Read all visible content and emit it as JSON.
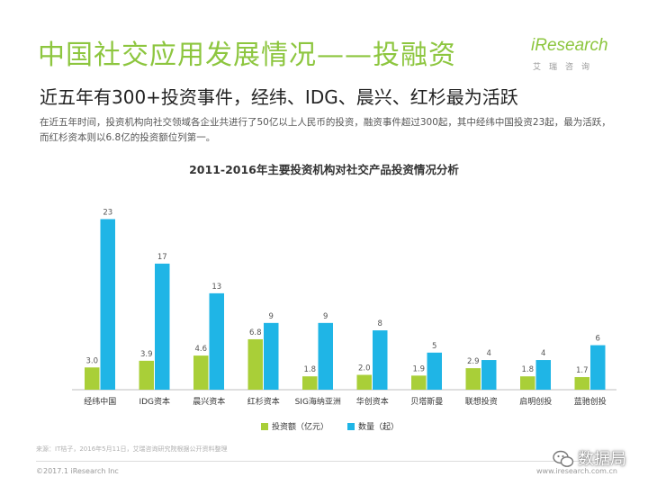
{
  "header": {
    "title": "中国社交应用发展情况——投融资",
    "logo_text": "iResearch",
    "logo_sub": "艾瑞咨询"
  },
  "subtitle": "近五年有300+投资事件，经纬、IDG、晨兴、红杉最为活跃",
  "description": "在近五年时间，投资机构向社交领域各企业共进行了50亿以上人民币的投资，融资事件超过300起，其中经纬中国投资23起，最为活跃，而红杉资本则以6.8亿的投资额位列第一。",
  "footer": {
    "source": "来源：IT桔子，2016年5月11日，艾瑞咨询研究院根据公开资料整理",
    "copyright": "©2017.1 iResearch Inc",
    "site": "www.iresearch.com.cn"
  },
  "watermark": {
    "text": "数据局"
  },
  "colors": {
    "amount": "#a9cf38",
    "count": "#1fb5e6",
    "title_green": "#8dc63f"
  },
  "chart_data": {
    "type": "bar",
    "title": "2011-2016年主要投资机构对社交产品投资情况分析",
    "categories": [
      "经纬中国",
      "IDG资本",
      "晨兴资本",
      "红杉资本",
      "SIG海纳亚洲",
      "华创资本",
      "贝塔斯曼",
      "联想投资",
      "启明创投",
      "蓝驰创投"
    ],
    "series": [
      {
        "name": "投资额（亿元）",
        "values": [
          3.0,
          3.9,
          4.6,
          6.8,
          1.8,
          2.0,
          1.9,
          2.9,
          1.8,
          1.7
        ],
        "labels": [
          "3.0",
          "3.9",
          "4.6",
          "6.8",
          "1.8",
          "2.0",
          "1.9",
          "2.9",
          "1.8",
          "1.7"
        ]
      },
      {
        "name": "数量（起）",
        "values": [
          23,
          17,
          13,
          9,
          9,
          8,
          5,
          4,
          4,
          6
        ],
        "labels": [
          "23",
          "17",
          "13",
          "9",
          "9",
          "8",
          "5",
          "4",
          "4",
          "6"
        ]
      }
    ],
    "ylim": [
      0,
      25
    ],
    "grid": false,
    "legend": "bottom"
  }
}
